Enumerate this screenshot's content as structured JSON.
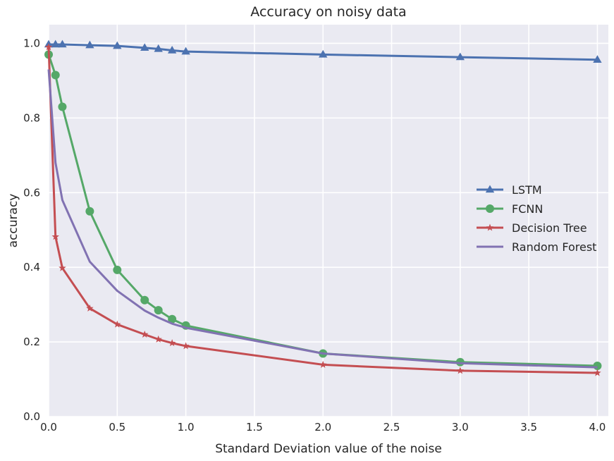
{
  "chart_data": {
    "type": "line",
    "title": "Accuracy on noisy data",
    "xlabel": "Standard Deviation value of the noise",
    "ylabel": "accuracy",
    "xlim": [
      0,
      4.08
    ],
    "ylim": [
      0,
      1.05
    ],
    "xticks": [
      "0.0",
      "0.5",
      "1.0",
      "1.5",
      "2.0",
      "2.5",
      "3.0",
      "3.5",
      "4.0"
    ],
    "yticks": [
      "0.0",
      "0.2",
      "0.4",
      "0.6",
      "0.8",
      "1.0"
    ],
    "grid": true,
    "legend_position": "center-right",
    "x": [
      0,
      0.05,
      0.1,
      0.3,
      0.5,
      0.7,
      0.8,
      0.9,
      1.0,
      2.0,
      3.0,
      4.0
    ],
    "series": [
      {
        "name": "LSTM",
        "color": "#4c72b0",
        "marker": "triangle",
        "values": [
          0.997,
          0.997,
          0.997,
          0.995,
          0.993,
          0.988,
          0.985,
          0.981,
          0.978,
          0.97,
          0.963,
          0.956
        ]
      },
      {
        "name": "FCNN",
        "color": "#55a868",
        "marker": "circle",
        "values": [
          0.97,
          0.915,
          0.83,
          0.55,
          0.393,
          0.312,
          0.285,
          0.261,
          0.244,
          0.169,
          0.146,
          0.136
        ]
      },
      {
        "name": "Decision Tree",
        "color": "#c44e52",
        "marker": "star",
        "values": [
          0.99,
          0.482,
          0.398,
          0.29,
          0.247,
          0.22,
          0.207,
          0.197,
          0.189,
          0.139,
          0.123,
          0.117
        ]
      },
      {
        "name": "Random Forest",
        "color": "#8172b2",
        "marker": "none",
        "values": [
          0.93,
          0.68,
          0.58,
          0.415,
          0.337,
          0.284,
          0.265,
          0.249,
          0.238,
          0.169,
          0.143,
          0.132
        ]
      }
    ]
  }
}
